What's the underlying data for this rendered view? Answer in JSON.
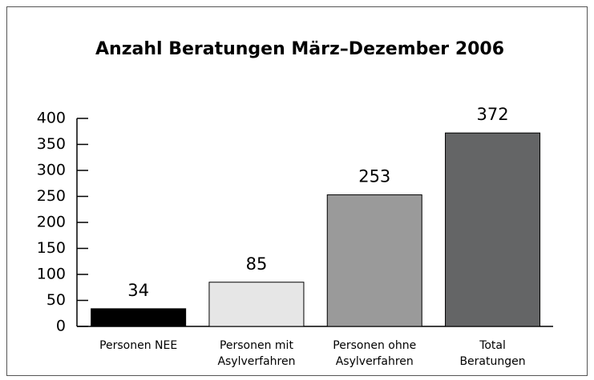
{
  "chart_data": {
    "type": "bar",
    "title": "Anzahl Beratungen März–Dezember 2006",
    "categories": [
      "Personen NEE",
      "Personen mit\nAsylverfahren",
      "Personen ohne\nAsylverfahren",
      "Total\nBeratungen"
    ],
    "values": [
      34,
      85,
      253,
      372
    ],
    "colors": [
      "#000000",
      "#e6e6e6",
      "#9a9a9a",
      "#646566"
    ],
    "ylim": [
      0,
      400
    ],
    "yticks": [
      0,
      50,
      100,
      150,
      200,
      250,
      300,
      350,
      400
    ]
  }
}
